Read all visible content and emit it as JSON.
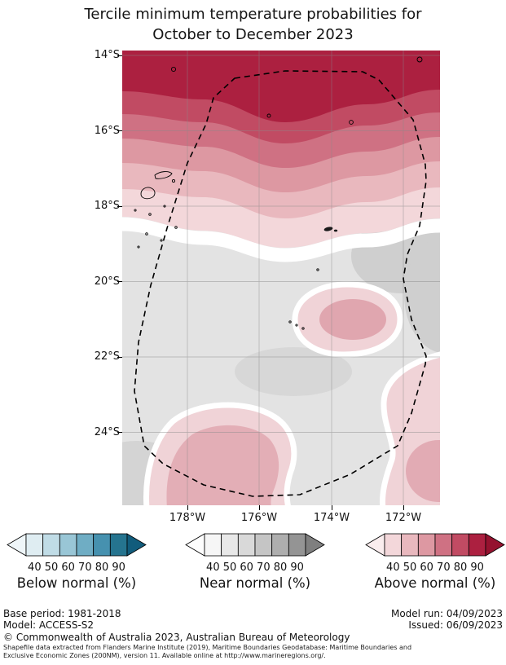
{
  "title": {
    "line1": "Tercile minimum temperature probabilities for",
    "line2": "October to December 2023"
  },
  "map": {
    "lat_ticks": [
      "14°S",
      "16°S",
      "18°S",
      "20°S",
      "22°S",
      "24°S"
    ],
    "lon_ticks": [
      "178°W",
      "176°W",
      "174°W",
      "172°W"
    ],
    "boundary_style": "dashed-eez-outline",
    "fill_colors": {
      "above_normal_bands_top_to_light": [
        "#ac2040",
        "#c14b63",
        "#cf7183",
        "#dd98a2",
        "#e9b8be",
        "#f3d7da"
      ],
      "near_normal_base": "#e3e3e3",
      "near_normal_darker": "#cfcfcf",
      "blob_light_pink": "#f0d3d7",
      "blob_medium_pink": "#e0a6af",
      "separation_band": "#ffffff"
    }
  },
  "legends": [
    {
      "id": "below-normal",
      "label": "Below normal (%)",
      "ticks": [
        "40",
        "50",
        "60",
        "70",
        "80",
        "90"
      ],
      "tip_left": "#eff6f9",
      "tip_right": "#115c7c",
      "colors": [
        "#dfedf2",
        "#c0dce6",
        "#99c6d6",
        "#6fadc4",
        "#4691af",
        "#25748f"
      ]
    },
    {
      "id": "near-normal",
      "label": "Near normal (%)",
      "ticks": [
        "40",
        "50",
        "60",
        "70",
        "80",
        "90"
      ],
      "tip_left": "#fdfdfd",
      "tip_right": "#7f7f7f",
      "colors": [
        "#f6f6f6",
        "#e8e8e8",
        "#d9d9d9",
        "#c5c5c5",
        "#aeaeae",
        "#949494"
      ]
    },
    {
      "id": "above-normal",
      "label": "Above normal (%)",
      "ticks": [
        "40",
        "50",
        "60",
        "70",
        "80",
        "90"
      ],
      "tip_left": "#faedee",
      "tip_right": "#95122f",
      "colors": [
        "#f3d7da",
        "#e9b8be",
        "#dd98a2",
        "#cf7183",
        "#c14b63",
        "#ac2040"
      ]
    }
  ],
  "footer": {
    "base_period": "Base period: 1981-2018",
    "model": "Model: ACCESS-S2",
    "model_run": "Model run: 04/09/2023",
    "issued": "Issued: 06/09/2023",
    "copyright": "© Commonwealth of Australia 2023, Australian Bureau of Meteorology",
    "attribution_line1": "Shapefile data extracted from Flanders Marine Institute (2019), Maritime Boundaries Geodatabase: Maritime Boundaries and",
    "attribution_line2": "Exclusive Economic Zones (200NM), version 11. Available online at http://www.marineregions.org/."
  }
}
